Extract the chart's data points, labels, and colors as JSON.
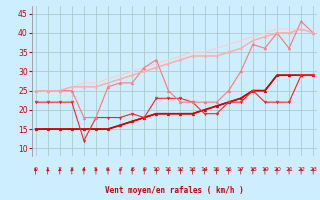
{
  "bg_color": "#cceeff",
  "grid_color": "#aacccc",
  "x_label": "Vent moyen/en rafales ( km/h )",
  "x_ticks": [
    0,
    1,
    2,
    3,
    4,
    5,
    6,
    7,
    8,
    9,
    10,
    11,
    12,
    13,
    14,
    15,
    16,
    17,
    18,
    19,
    20,
    21,
    22,
    23
  ],
  "ylim": [
    8,
    47
  ],
  "xlim": [
    -0.3,
    23.3
  ],
  "yticks": [
    10,
    15,
    20,
    25,
    30,
    35,
    40,
    45
  ],
  "series": [
    {
      "x": [
        0,
        1,
        2,
        3,
        4,
        5,
        6,
        7,
        8,
        9,
        10,
        11,
        12,
        13,
        14,
        15,
        16,
        17,
        18,
        19,
        20,
        21,
        22,
        23
      ],
      "y": [
        15,
        15,
        15,
        15,
        15,
        15,
        15,
        16,
        17,
        18,
        19,
        19,
        19,
        19,
        20,
        21,
        22,
        23,
        25,
        25,
        29,
        29,
        29,
        29
      ],
      "color": "#dd0000",
      "lw": 1.0,
      "marker": "^",
      "ms": 2.0
    },
    {
      "x": [
        0,
        1,
        2,
        3,
        4,
        5,
        6,
        7,
        8,
        9,
        10,
        11,
        12,
        13,
        14,
        15,
        16,
        17,
        18,
        19,
        20,
        21,
        22,
        23
      ],
      "y": [
        15,
        15,
        15,
        15,
        15,
        15,
        15,
        16,
        17,
        18,
        19,
        19,
        19,
        19,
        20,
        21,
        22,
        23,
        25,
        25,
        29,
        29,
        29,
        29
      ],
      "color": "#bb0000",
      "lw": 1.2,
      "marker": null,
      "ms": 0
    },
    {
      "x": [
        0,
        1,
        2,
        3,
        4,
        5,
        6,
        7,
        8,
        9,
        10,
        11,
        12,
        13,
        14,
        15,
        16,
        17,
        18,
        19,
        20,
        21,
        22,
        23
      ],
      "y": [
        22,
        22,
        22,
        22,
        12,
        18,
        18,
        18,
        19,
        18,
        23,
        23,
        23,
        22,
        19,
        19,
        22,
        22,
        25,
        22,
        22,
        22,
        29,
        29
      ],
      "color": "#ff2222",
      "lw": 0.8,
      "marker": "v",
      "ms": 2.0
    },
    {
      "x": [
        0,
        1,
        2,
        3,
        4,
        5,
        6,
        7,
        8,
        9,
        10,
        11,
        12,
        13,
        14,
        15,
        16,
        17,
        18,
        19,
        20,
        21,
        22,
        23
      ],
      "y": [
        25,
        25,
        25,
        25,
        18,
        18,
        26,
        27,
        27,
        31,
        33,
        25,
        22,
        22,
        22,
        22,
        25,
        30,
        37,
        36,
        40,
        36,
        43,
        40
      ],
      "color": "#ff7777",
      "lw": 0.8,
      "marker": "^",
      "ms": 2.0
    },
    {
      "x": [
        0,
        1,
        2,
        3,
        4,
        5,
        6,
        7,
        8,
        9,
        10,
        11,
        12,
        13,
        14,
        15,
        16,
        17,
        18,
        19,
        20,
        21,
        22,
        23
      ],
      "y": [
        25,
        25,
        25,
        26,
        26,
        26,
        27,
        28,
        29,
        30,
        31,
        32,
        33,
        34,
        34,
        34,
        35,
        36,
        38,
        39,
        40,
        40,
        41,
        40
      ],
      "color": "#ffaaaa",
      "lw": 0.8,
      "marker": "^",
      "ms": 1.5
    },
    {
      "x": [
        0,
        1,
        2,
        3,
        4,
        5,
        6,
        7,
        8,
        9,
        10,
        11,
        12,
        13,
        14,
        15,
        16,
        17,
        18,
        19,
        20,
        21,
        22,
        23
      ],
      "y": [
        25,
        25,
        25,
        26,
        26,
        26,
        27,
        28,
        29,
        30,
        31,
        32,
        33,
        34,
        34,
        34,
        35,
        36,
        38,
        39,
        40,
        40,
        41,
        40
      ],
      "color": "#ffbbbb",
      "lw": 1.0,
      "marker": null,
      "ms": 0
    },
    {
      "x": [
        0,
        1,
        2,
        3,
        4,
        5,
        6,
        7,
        8,
        9,
        10,
        11,
        12,
        13,
        14,
        15,
        16,
        17,
        18,
        19,
        20,
        21,
        22,
        23
      ],
      "y": [
        25,
        25,
        25,
        26,
        27,
        27,
        28,
        29,
        30,
        31,
        32,
        33,
        34,
        35,
        35,
        36,
        37,
        38,
        39,
        40,
        41,
        41,
        41,
        40
      ],
      "color": "#ffcccc",
      "lw": 0.8,
      "marker": null,
      "ms": 0
    }
  ],
  "arrows_x": [
    0,
    1,
    2,
    3,
    4,
    5,
    6,
    7,
    8,
    9,
    10,
    11,
    12,
    13,
    14,
    15,
    16,
    17,
    18,
    19,
    20,
    21,
    22,
    23
  ],
  "arrow_color": "#cc0000"
}
